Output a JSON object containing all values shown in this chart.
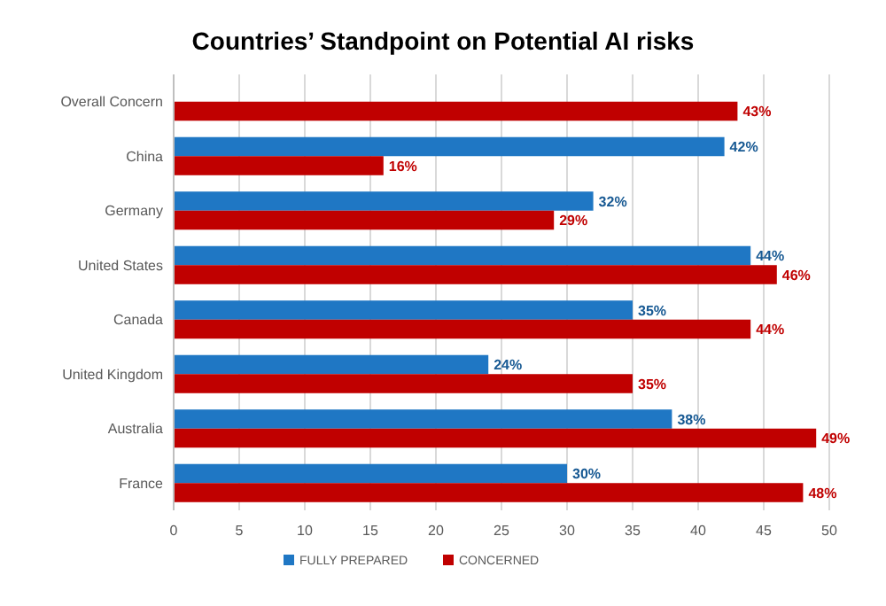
{
  "chart_data": {
    "type": "bar",
    "orientation": "horizontal",
    "title": "Countries’ Standpoint on Potential AI risks",
    "categories": [
      "Overall Concern",
      "China",
      "Germany",
      "United States",
      "Canada",
      "United Kingdom",
      "Australia",
      "France"
    ],
    "series": [
      {
        "name": "FULLY PREPARED",
        "color": "#1f77c4",
        "values": [
          null,
          42,
          32,
          44,
          35,
          24,
          38,
          30
        ],
        "value_labels": [
          null,
          "42%",
          "32%",
          "44%",
          "35%",
          "24%",
          "38%",
          "30%"
        ]
      },
      {
        "name": "CONCERNED",
        "color": "#c00000",
        "values": [
          43,
          16,
          29,
          46,
          44,
          35,
          49,
          48
        ],
        "value_labels": [
          "43%",
          "16%",
          "29%",
          "46%",
          "44%",
          "35%",
          "49%",
          "48%"
        ]
      }
    ],
    "xlim": [
      0,
      50
    ],
    "xticks": [
      0,
      5,
      10,
      15,
      20,
      25,
      30,
      35,
      40,
      45,
      50
    ],
    "grid": "x",
    "legend": "bottom"
  }
}
